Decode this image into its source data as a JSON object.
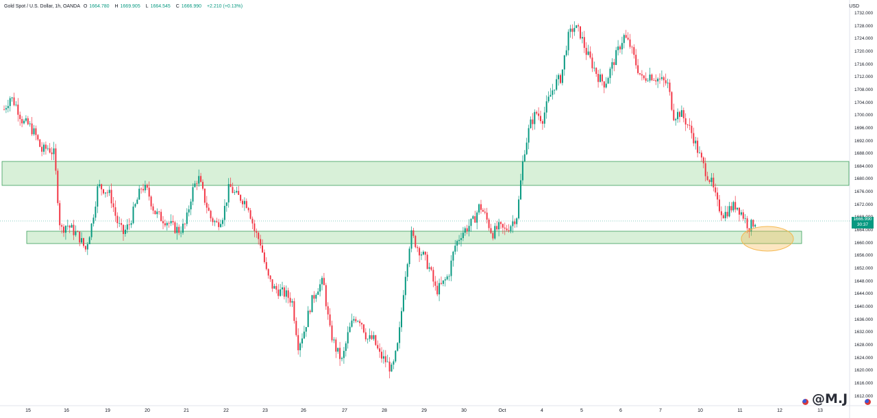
{
  "legend": {
    "symbol": "Gold Spot / U.S. Dollar, 1h, OANDA",
    "open_label": "O",
    "open": "1664.780",
    "high_label": "H",
    "high": "1669.905",
    "low_label": "L",
    "low": "1664.545",
    "close_label": "C",
    "close": "1666.990",
    "change": "+2.210 (+0.13%)"
  },
  "currency": "USD",
  "price_badge": {
    "price": "1666.990",
    "countdown": "30:37"
  },
  "watermark": "@M.J",
  "colors": {
    "up": "#089981",
    "down": "#f23645",
    "zone_fill": "#d8f0d8",
    "zone_stroke": "#3a9e5a",
    "ellipse": "#f5b74d"
  },
  "y_axis_labels": [
    "1732.000",
    "1728.000",
    "1724.000",
    "1720.000",
    "1716.000",
    "1712.000",
    "1708.000",
    "1704.000",
    "1700.000",
    "1696.000",
    "1692.000",
    "1688.000",
    "1684.000",
    "1680.000",
    "1676.000",
    "1672.000",
    "1668.000",
    "1664.000",
    "1660.000",
    "1656.000",
    "1652.000",
    "1648.000",
    "1644.000",
    "1640.000",
    "1636.000",
    "1632.000",
    "1628.000",
    "1624.000",
    "1620.000",
    "1616.000",
    "1612.000"
  ],
  "x_axis_labels": [
    "15",
    "16",
    "19",
    "20",
    "21",
    "22",
    "23",
    "26",
    "27",
    "28",
    "29",
    "30",
    "Oct",
    "4",
    "5",
    "6",
    "7",
    "10",
    "11",
    "12",
    "13"
  ],
  "chart_data": {
    "type": "candlestick",
    "title": "Gold Spot / U.S. Dollar, 1h, OANDA",
    "ylim": [
      1612,
      1734
    ],
    "zones": [
      {
        "name": "upper-resistance",
        "from": 1678,
        "to": 1686
      },
      {
        "name": "lower-support",
        "from": 1660,
        "to": 1664
      }
    ],
    "path": [
      1702,
      1706,
      1703,
      1698,
      1697,
      1694,
      1689,
      1690,
      1688,
      1664,
      1666,
      1664,
      1662,
      1658,
      1666,
      1678,
      1677,
      1675,
      1667,
      1663,
      1666,
      1672,
      1678,
      1676,
      1670,
      1668,
      1667,
      1665,
      1664,
      1666,
      1676,
      1681,
      1674,
      1668,
      1666,
      1669,
      1678,
      1675,
      1674,
      1672,
      1664,
      1660,
      1650,
      1646,
      1645,
      1644,
      1642,
      1628,
      1633,
      1641,
      1646,
      1648,
      1633,
      1627,
      1623,
      1632,
      1637,
      1636,
      1630,
      1630,
      1625,
      1623,
      1620,
      1629,
      1649,
      1663,
      1659,
      1656,
      1652,
      1645,
      1647,
      1650,
      1659,
      1663,
      1665,
      1667,
      1672,
      1668,
      1663,
      1665,
      1664,
      1666,
      1669,
      1688,
      1697,
      1701,
      1699,
      1705,
      1710,
      1712,
      1724,
      1728,
      1726,
      1720,
      1716,
      1712,
      1710,
      1715,
      1720,
      1725,
      1722,
      1716,
      1711,
      1713,
      1712,
      1711,
      1710,
      1700,
      1701,
      1698,
      1694,
      1688,
      1683,
      1679,
      1672,
      1669,
      1671,
      1672,
      1669,
      1665,
      1667
    ]
  }
}
